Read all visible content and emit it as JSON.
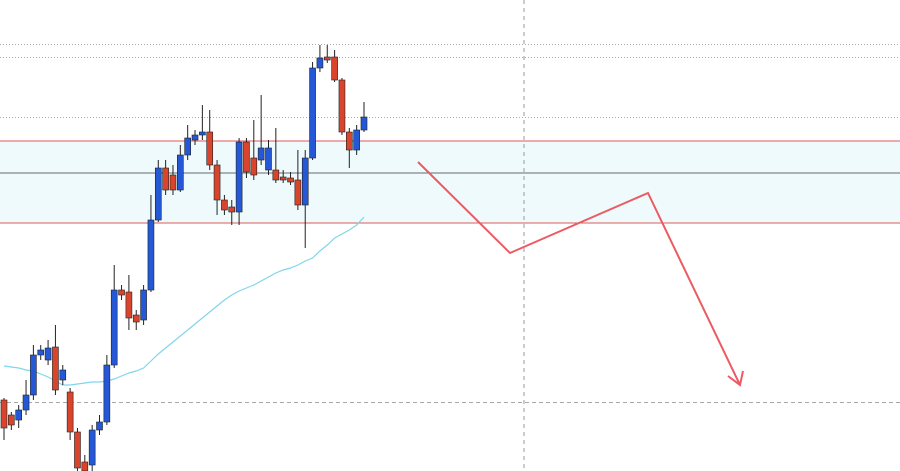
{
  "chart_data": {
    "type": "candlestick",
    "ylim": [
      0,
      471
    ],
    "up_color": "#2458d6",
    "down_color": "#d8452c",
    "open": [
      71,
      56,
      51,
      61,
      76,
      116,
      111,
      124,
      91,
      79,
      39,
      9,
      6,
      41,
      49,
      106,
      181,
      179,
      156,
      151,
      181,
      251,
      303,
      296,
      281,
      316,
      331,
      336,
      339,
      306,
      271,
      264,
      259,
      329,
      313,
      311,
      301,
      301,
      294,
      293,
      291,
      266,
      313,
      403,
      414,
      414,
      391,
      339,
      321,
      341
    ],
    "high": [
      73,
      59,
      66,
      91,
      126,
      126,
      131,
      146,
      106,
      83,
      43,
      16,
      46,
      56,
      116,
      206,
      186,
      196,
      161,
      186,
      276,
      311,
      311,
      306,
      326,
      346,
      341,
      366,
      361,
      311,
      276,
      271,
      333,
      333,
      351,
      376,
      331,
      343,
      301,
      299,
      321,
      321,
      409,
      426,
      426,
      421,
      393,
      343,
      346,
      369
    ],
    "low": [
      31,
      41,
      43,
      56,
      71,
      111,
      106,
      76,
      86,
      31,
      0,
      0,
      0,
      36,
      46,
      103,
      171,
      141,
      141,
      146,
      179,
      249,
      276,
      276,
      279,
      311,
      326,
      331,
      301,
      256,
      256,
      246,
      246,
      293,
      291,
      306,
      296,
      288,
      288,
      286,
      261,
      223,
      311,
      399,
      408,
      389,
      336,
      303,
      316,
      339
    ],
    "close": [
      43,
      46,
      61,
      76,
      116,
      121,
      123,
      81,
      101,
      39,
      3,
      0,
      41,
      49,
      106,
      181,
      176,
      153,
      149,
      181,
      251,
      303,
      281,
      281,
      316,
      333,
      336,
      339,
      306,
      271,
      261,
      259,
      329,
      299,
      296,
      323,
      323,
      291,
      291,
      289,
      266,
      313,
      403,
      413,
      411,
      391,
      339,
      321,
      341,
      354
    ],
    "ma": {
      "color": "#7fd6ea",
      "values": [
        105,
        104,
        103,
        101,
        100,
        97,
        94,
        90,
        86,
        86,
        87,
        88,
        89,
        89,
        90,
        92,
        95,
        98,
        100,
        103,
        110,
        117,
        123,
        129,
        135,
        141,
        147,
        153,
        159,
        165,
        171,
        176,
        180,
        183,
        186,
        190,
        194,
        198,
        201,
        203,
        206,
        210,
        213,
        220,
        226,
        233,
        237,
        241,
        246,
        254
      ]
    },
    "zone": {
      "low": 248,
      "high": 330,
      "color": "#eefafc",
      "edge_color": "#e05a5a"
    },
    "mid_level": {
      "value": 298,
      "color": "#6b6b6b"
    },
    "levels": [
      {
        "value": 427,
        "style": "dotted"
      },
      {
        "value": 414,
        "style": "dotted"
      },
      {
        "value": 354,
        "style": "dotted"
      },
      {
        "value": 69,
        "style": "dashed"
      }
    ]
  }
}
